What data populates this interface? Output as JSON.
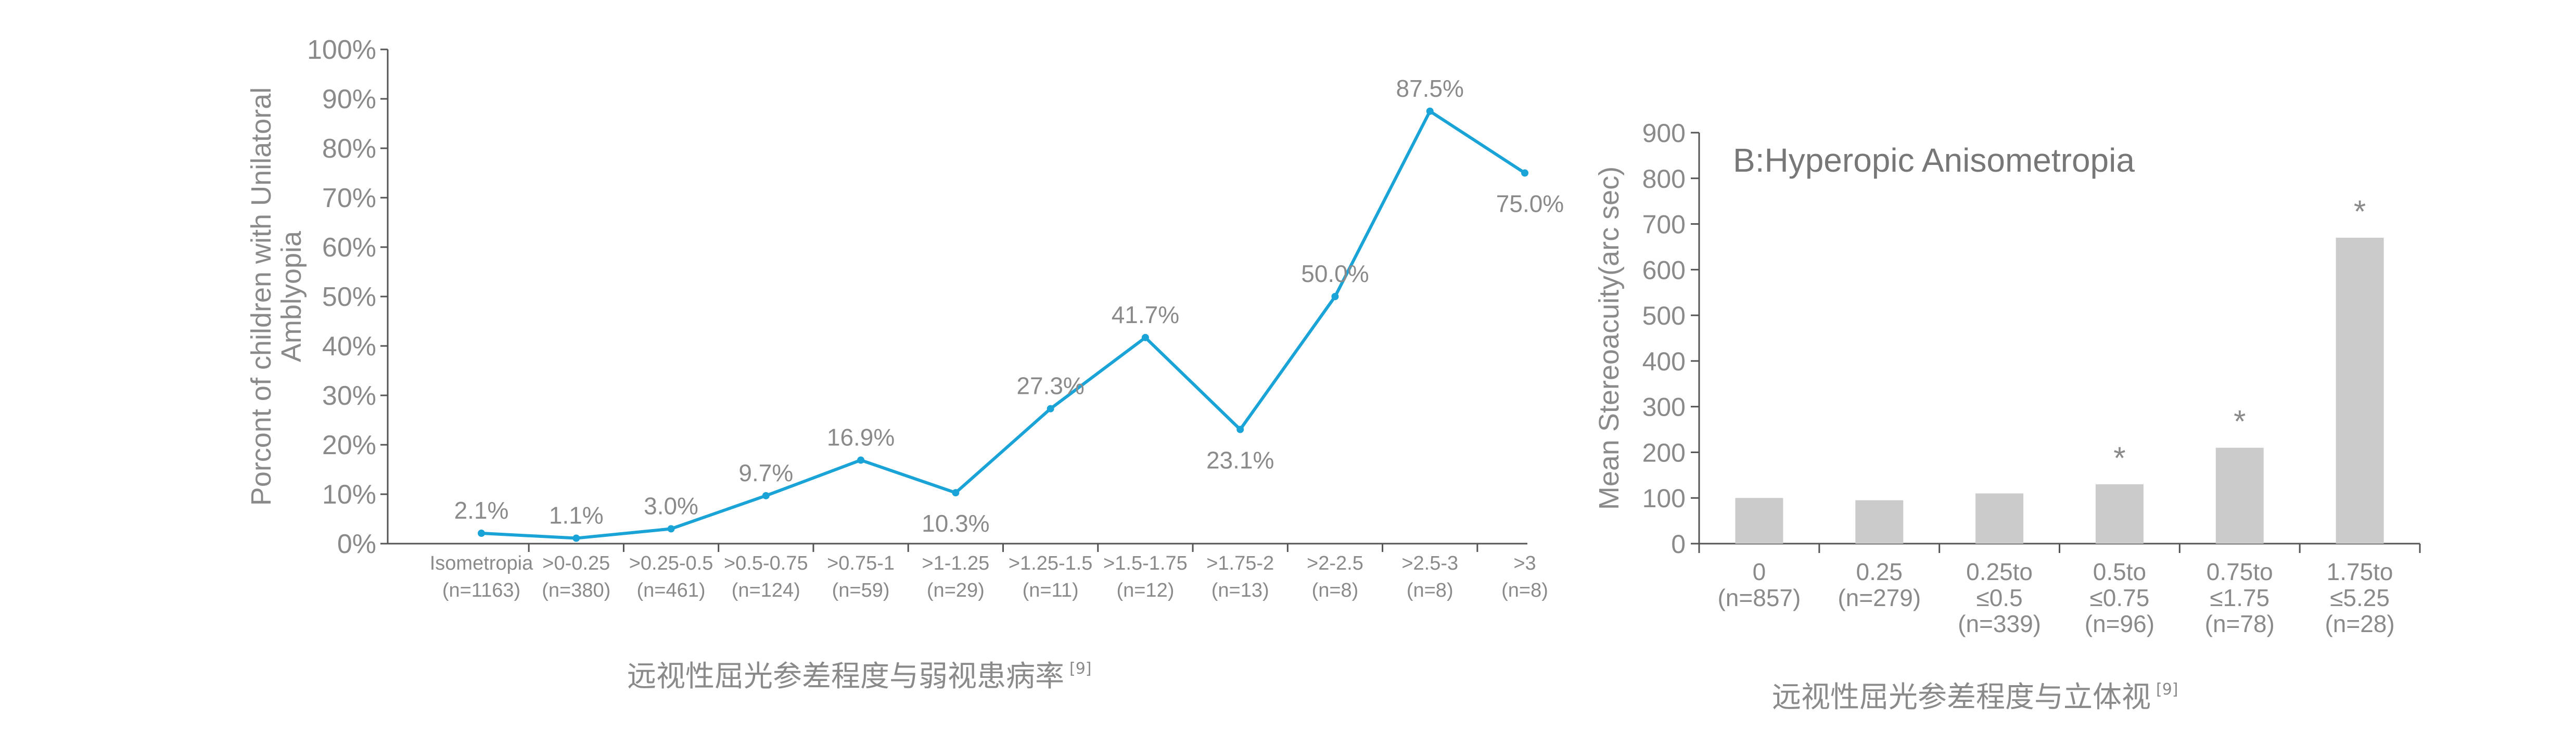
{
  "chart_data": [
    {
      "type": "line",
      "title": "",
      "xlabel": "",
      "ylabel": "Porcont of children with Unilatoral Amblyopia",
      "ylabel_lines": [
        "Porcont of children with Unilatoral",
        "Amblyopia"
      ],
      "ylim": [
        0,
        100
      ],
      "yticks": [
        "0%",
        "10%",
        "20%",
        "30%",
        "40%",
        "50%",
        "60%",
        "70%",
        "80%",
        "90%",
        "100%"
      ],
      "categories": [
        [
          "Isometropia",
          "(n=1163)"
        ],
        [
          ">0-0.25",
          "(n=380)"
        ],
        [
          ">0.25-0.5",
          "(n=461)"
        ],
        [
          ">0.5-0.75",
          "(n=124)"
        ],
        [
          ">0.75-1",
          "(n=59)"
        ],
        [
          ">1-1.25",
          "(n=29)"
        ],
        [
          ">1.25-1.5",
          "(n=11)"
        ],
        [
          ">1.5-1.75",
          "(n=12)"
        ],
        [
          ">1.75-2",
          "(n=13)"
        ],
        [
          ">2-2.5",
          "(n=8)"
        ],
        [
          ">2.5-3",
          "(n=8)"
        ],
        [
          ">3",
          "(n=8)"
        ]
      ],
      "values": [
        2.1,
        1.1,
        3.0,
        9.7,
        16.9,
        10.3,
        27.3,
        41.7,
        23.1,
        50.0,
        87.5,
        75.0
      ],
      "value_labels": [
        "2.1%",
        "1.1%",
        "3.0%",
        "9.7%",
        "16.9%",
        "10.3%",
        "27.3%",
        "41.7%",
        "23.1%",
        "50.0%",
        "87.5%",
        "75.0%"
      ],
      "line_color": "#1aa3d6",
      "grid": false,
      "caption": "远视性屈光参差程度与弱视患病率",
      "caption_ref": "[9]"
    },
    {
      "type": "bar",
      "title": "B:Hyperopic Anisometropia",
      "xlabel": "",
      "ylabel": "Mean Stereoacuity(arc sec)",
      "ylim": [
        0,
        900
      ],
      "yticks": [
        "0",
        "100",
        "200",
        "300",
        "400",
        "500",
        "600",
        "700",
        "800",
        "900"
      ],
      "categories": [
        [
          "0",
          "(n=857)"
        ],
        [
          "0.25",
          "(n=279)"
        ],
        [
          "0.25to",
          "≤0.5",
          "(n=339)"
        ],
        [
          "0.5to",
          "≤0.75",
          "(n=96)"
        ],
        [
          "0.75to",
          "≤1.75",
          "(n=78)"
        ],
        [
          "1.75to",
          "≤5.25",
          "(n=28)"
        ]
      ],
      "values": [
        100,
        95,
        110,
        130,
        210,
        670
      ],
      "significance": [
        "",
        "",
        "",
        "*",
        "*",
        "*"
      ],
      "bar_color": "#cbcbcb",
      "grid": false,
      "caption": "远视性屈光参差程度与立体视",
      "caption_ref": "[9]"
    }
  ]
}
